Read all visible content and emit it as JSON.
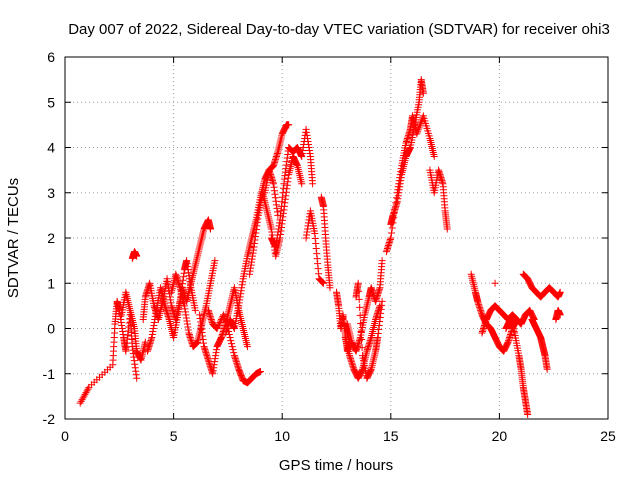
{
  "chart_data": {
    "type": "scatter",
    "title": "Day 007 of 2022, Sidereal Day-to-day VTEC variation (SDTVAR) for receiver ohi3",
    "xlabel": "GPS time / hours",
    "ylabel": "SDTVAR / TECUs",
    "xlim": [
      0,
      25
    ],
    "ylim": [
      -2,
      6
    ],
    "x_ticks": [
      0,
      5,
      10,
      15,
      20,
      25
    ],
    "y_ticks": [
      -2,
      -1,
      0,
      1,
      2,
      3,
      4,
      5,
      6
    ],
    "x_tick_labels": [
      "0",
      "5",
      "10",
      "15",
      "20",
      "25"
    ],
    "y_tick_labels": [
      "-2",
      "-1",
      "0",
      "1",
      "2",
      "3",
      "4",
      "5",
      "6"
    ],
    "grid": true,
    "marker": "+",
    "marker_color": "#ff0000",
    "series": [
      {
        "name": "SDTVAR",
        "tracks": [
          [
            [
              0.7,
              -1.65
            ],
            [
              1.1,
              -1.3
            ],
            [
              2.2,
              -0.8
            ],
            [
              2.3,
              0.1
            ],
            [
              2.4,
              0.6
            ],
            [
              2.5,
              0.4
            ],
            [
              2.7,
              -0.2
            ],
            [
              2.8,
              -0.5
            ],
            [
              3.0,
              0.3
            ],
            [
              3.1,
              -0.4
            ],
            [
              3.3,
              -1.1
            ]
          ],
          [
            [
              2.6,
              0.3
            ],
            [
              2.8,
              0.8
            ],
            [
              3.0,
              0.4
            ],
            [
              3.2,
              0.0
            ],
            [
              3.3,
              -0.5
            ],
            [
              3.5,
              -0.7
            ],
            [
              3.7,
              -0.3
            ]
          ],
          [
            [
              3.1,
              1.55
            ],
            [
              3.2,
              1.7
            ],
            [
              3.3,
              1.6
            ]
          ],
          [
            [
              3.6,
              0.2
            ],
            [
              3.7,
              0.7
            ],
            [
              3.9,
              1.0
            ],
            [
              4.1,
              0.5
            ],
            [
              4.3,
              0.2
            ],
            [
              4.5,
              0.6
            ],
            [
              4.7,
              1.1
            ],
            [
              4.9,
              0.5
            ],
            [
              5.1,
              0.2
            ],
            [
              5.3,
              0.6
            ],
            [
              5.5,
              1.3
            ],
            [
              5.6,
              1.5
            ],
            [
              5.8,
              0.9
            ],
            [
              6.0,
              0.4
            ]
          ],
          [
            [
              3.8,
              -0.5
            ],
            [
              4.0,
              -0.2
            ],
            [
              4.2,
              0.4
            ],
            [
              4.4,
              0.9
            ],
            [
              4.6,
              0.5
            ],
            [
              4.8,
              0.2
            ],
            [
              5.0,
              -0.2
            ],
            [
              5.2,
              0.3
            ],
            [
              5.4,
              0.9
            ],
            [
              5.6,
              0.6
            ],
            [
              5.8,
              1.0
            ],
            [
              6.0,
              1.4
            ],
            [
              6.2,
              1.8
            ],
            [
              6.4,
              2.2
            ],
            [
              6.6,
              2.4
            ],
            [
              6.7,
              2.2
            ]
          ],
          [
            [
              4.9,
              0.8
            ],
            [
              5.1,
              1.2
            ],
            [
              5.3,
              0.9
            ],
            [
              5.5,
              0.5
            ],
            [
              5.7,
              -0.1
            ],
            [
              5.9,
              -0.4
            ],
            [
              6.1,
              -0.3
            ],
            [
              6.3,
              0.1
            ],
            [
              6.5,
              0.5
            ],
            [
              6.7,
              1.0
            ],
            [
              6.9,
              1.5
            ]
          ],
          [
            [
              6.2,
              0.3
            ],
            [
              6.4,
              -0.4
            ],
            [
              6.6,
              -0.7
            ],
            [
              6.8,
              -1.0
            ],
            [
              7.0,
              -0.4
            ],
            [
              7.2,
              -0.2
            ],
            [
              7.4,
              0.1
            ],
            [
              7.6,
              0.5
            ],
            [
              7.8,
              0.9
            ],
            [
              8.0,
              0.4
            ],
            [
              8.2,
              0.0
            ],
            [
              8.4,
              -0.4
            ]
          ],
          [
            [
              6.6,
              0.4
            ],
            [
              6.8,
              0.1
            ],
            [
              7.0,
              0.0
            ],
            [
              7.3,
              0.3
            ],
            [
              7.5,
              0.0
            ],
            [
              7.8,
              -0.6
            ],
            [
              8.0,
              -0.9
            ],
            [
              8.2,
              -1.15
            ],
            [
              8.4,
              -1.2
            ],
            [
              8.6,
              -1.1
            ],
            [
              8.8,
              -1.0
            ],
            [
              9.0,
              -0.95
            ]
          ],
          [
            [
              7.4,
              -0.1
            ],
            [
              7.6,
              0.2
            ],
            [
              7.8,
              0.0
            ],
            [
              8.0,
              0.5
            ],
            [
              8.2,
              1.1
            ],
            [
              8.4,
              1.6
            ],
            [
              8.6,
              2.0
            ],
            [
              8.8,
              2.4
            ],
            [
              9.0,
              2.9
            ],
            [
              9.2,
              3.3
            ],
            [
              9.4,
              3.5
            ],
            [
              9.6,
              3.2
            ],
            [
              9.8,
              2.5
            ]
          ],
          [
            [
              8.5,
              1.2
            ],
            [
              8.7,
              1.8
            ],
            [
              8.9,
              2.5
            ],
            [
              9.1,
              3.0
            ],
            [
              9.3,
              2.6
            ],
            [
              9.5,
              2.2
            ],
            [
              9.7,
              1.6
            ],
            [
              9.9,
              2.0
            ],
            [
              10.1,
              2.7
            ],
            [
              10.3,
              3.4
            ],
            [
              10.5,
              3.8
            ],
            [
              10.7,
              3.6
            ],
            [
              10.9,
              3.2
            ]
          ],
          [
            [
              9.2,
              3.0
            ],
            [
              9.4,
              3.5
            ],
            [
              9.6,
              3.6
            ],
            [
              9.8,
              3.9
            ],
            [
              10.0,
              4.3
            ],
            [
              10.2,
              4.5
            ],
            [
              10.3,
              4.5
            ]
          ],
          [
            [
              9.5,
              2.0
            ],
            [
              9.7,
              1.8
            ],
            [
              9.9,
              2.4
            ],
            [
              10.1,
              3.3
            ],
            [
              10.3,
              4.0
            ],
            [
              10.5,
              3.9
            ],
            [
              10.7,
              4.0
            ],
            [
              10.9,
              3.8
            ],
            [
              11.1,
              4.4
            ],
            [
              11.3,
              3.8
            ],
            [
              11.4,
              3.2
            ]
          ],
          [
            [
              11.1,
              2.0
            ],
            [
              11.3,
              2.6
            ],
            [
              11.5,
              2.1
            ],
            [
              11.7,
              1.1
            ],
            [
              11.9,
              1.0
            ]
          ],
          [
            [
              11.8,
              2.9
            ],
            [
              11.9,
              2.7
            ],
            [
              12.0,
              2.0
            ],
            [
              12.1,
              1.4
            ],
            [
              12.2,
              0.9
            ]
          ],
          [
            [
              12.5,
              0.8
            ],
            [
              12.6,
              0.5
            ],
            [
              12.7,
              0.0
            ],
            [
              12.8,
              0.3
            ],
            [
              12.9,
              -0.1
            ],
            [
              13.0,
              -0.5
            ],
            [
              13.1,
              -0.3
            ]
          ],
          [
            [
              12.9,
              -0.2
            ],
            [
              13.1,
              -0.6
            ],
            [
              13.3,
              -0.9
            ],
            [
              13.5,
              -1.1
            ],
            [
              13.7,
              -0.9
            ],
            [
              13.9,
              -0.5
            ],
            [
              14.1,
              -0.2
            ],
            [
              14.3,
              0.2
            ],
            [
              14.5,
              0.5
            ]
          ],
          [
            [
              13.0,
              0.1
            ],
            [
              13.2,
              -0.3
            ],
            [
              13.4,
              -0.5
            ],
            [
              13.6,
              -0.2
            ],
            [
              13.8,
              0.3
            ],
            [
              14.0,
              0.7
            ],
            [
              14.1,
              0.9
            ],
            [
              14.3,
              0.6
            ],
            [
              14.5,
              0.9
            ],
            [
              14.6,
              1.5
            ]
          ],
          [
            [
              13.4,
              0.7
            ],
            [
              13.5,
              1.0
            ],
            [
              13.7,
              -0.6
            ],
            [
              13.9,
              -1.1
            ],
            [
              14.1,
              -0.9
            ],
            [
              14.3,
              -0.5
            ],
            [
              14.4,
              -0.2
            ],
            [
              14.6,
              0.6
            ]
          ],
          [
            [
              15.0,
              2.3
            ],
            [
              15.1,
              2.5
            ],
            [
              15.3,
              2.8
            ],
            [
              15.5,
              3.4
            ],
            [
              15.7,
              3.8
            ],
            [
              15.9,
              4.0
            ],
            [
              16.1,
              4.5
            ],
            [
              16.3,
              5.0
            ],
            [
              16.4,
              5.5
            ],
            [
              16.5,
              5.2
            ]
          ],
          [
            [
              14.8,
              1.7
            ],
            [
              15.0,
              2.0
            ],
            [
              15.3,
              3.0
            ],
            [
              15.5,
              3.6
            ],
            [
              15.7,
              4.1
            ],
            [
              15.9,
              4.4
            ],
            [
              16.0,
              4.7
            ],
            [
              16.2,
              4.3
            ],
            [
              16.5,
              4.7
            ],
            [
              16.8,
              4.2
            ],
            [
              17.0,
              3.8
            ]
          ],
          [
            [
              16.8,
              3.5
            ],
            [
              17.0,
              3.0
            ],
            [
              17.2,
              3.5
            ],
            [
              17.4,
              3.2
            ],
            [
              17.5,
              2.6
            ],
            [
              17.6,
              2.2
            ]
          ],
          [
            [
              18.7,
              1.2
            ],
            [
              18.9,
              0.8
            ],
            [
              19.0,
              0.6
            ],
            [
              19.2,
              0.3
            ],
            [
              19.4,
              0.1
            ],
            [
              19.6,
              0.0
            ],
            [
              19.8,
              -0.2
            ],
            [
              20.0,
              -0.4
            ],
            [
              20.2,
              -0.5
            ],
            [
              20.4,
              -0.3
            ],
            [
              20.6,
              0.0
            ],
            [
              20.8,
              0.2
            ]
          ],
          [
            [
              19.2,
              -0.1
            ],
            [
              19.4,
              0.2
            ],
            [
              19.6,
              0.4
            ],
            [
              19.8,
              0.5
            ],
            [
              20.0,
              0.4
            ],
            [
              20.2,
              0.3
            ],
            [
              20.4,
              0.2
            ],
            [
              20.6,
              0.3
            ],
            [
              20.8,
              0.2
            ],
            [
              21.0,
              0.1
            ],
            [
              21.2,
              0.3
            ],
            [
              21.4,
              0.4
            ],
            [
              21.6,
              0.2
            ]
          ],
          [
            [
              20.3,
              0.0
            ],
            [
              20.5,
              0.2
            ],
            [
              20.7,
              -0.1
            ],
            [
              20.9,
              -0.6
            ],
            [
              21.0,
              -0.9
            ],
            [
              21.1,
              -1.3
            ],
            [
              21.2,
              -1.6
            ],
            [
              21.3,
              -1.9
            ]
          ],
          [
            [
              21.1,
              1.2
            ],
            [
              21.3,
              1.1
            ],
            [
              21.5,
              0.9
            ],
            [
              21.7,
              0.8
            ],
            [
              21.9,
              0.7
            ],
            [
              22.1,
              0.8
            ],
            [
              22.3,
              0.9
            ],
            [
              22.5,
              0.8
            ],
            [
              22.7,
              0.7
            ],
            [
              22.8,
              0.8
            ]
          ],
          [
            [
              21.5,
              0.2
            ],
            [
              21.7,
              0.0
            ],
            [
              21.9,
              -0.2
            ],
            [
              22.0,
              -0.4
            ],
            [
              22.1,
              -0.6
            ],
            [
              22.2,
              -0.9
            ]
          ],
          [
            [
              22.6,
              0.2
            ],
            [
              22.7,
              0.4
            ],
            [
              22.8,
              0.3
            ]
          ],
          [
            [
              19.8,
              1.0
            ]
          ]
        ]
      }
    ]
  }
}
